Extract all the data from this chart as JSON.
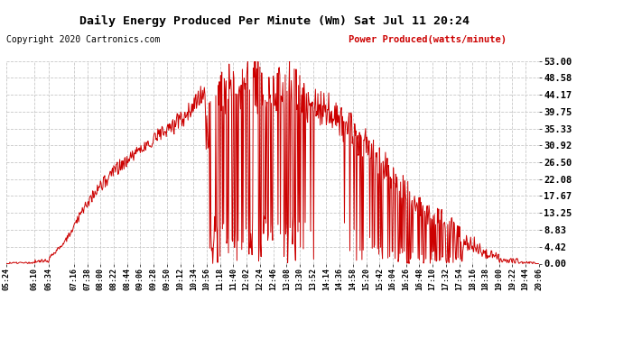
{
  "title": "Daily Energy Produced Per Minute (Wm) Sat Jul 11 20:24",
  "copyright": "Copyright 2020 Cartronics.com",
  "legend_label": "Power Produced(watts/minute)",
  "background_color": "#ffffff",
  "line_color": "#cc0000",
  "grid_color": "#c8c8c8",
  "yticks": [
    0.0,
    4.42,
    8.83,
    13.25,
    17.67,
    22.08,
    26.5,
    30.92,
    35.33,
    39.75,
    44.17,
    48.58,
    53.0
  ],
  "ymax": 53.0,
  "ymin": 0.0,
  "xtick_labels": [
    "05:24",
    "06:10",
    "06:34",
    "07:16",
    "07:38",
    "08:00",
    "08:22",
    "08:44",
    "09:06",
    "09:28",
    "09:50",
    "10:12",
    "10:34",
    "10:56",
    "11:18",
    "11:40",
    "12:02",
    "12:24",
    "12:46",
    "13:08",
    "13:30",
    "13:52",
    "14:14",
    "14:36",
    "14:58",
    "15:20",
    "15:42",
    "16:04",
    "16:26",
    "16:48",
    "17:10",
    "17:32",
    "17:54",
    "18:16",
    "18:38",
    "19:00",
    "19:22",
    "19:44",
    "20:06"
  ]
}
